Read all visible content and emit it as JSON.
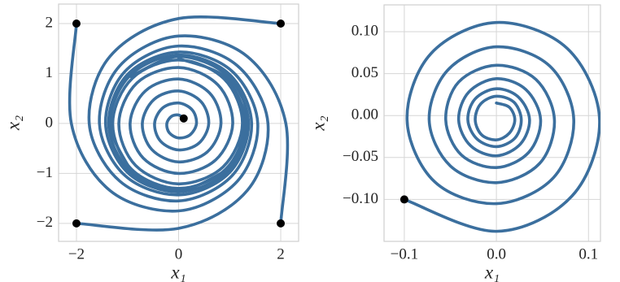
{
  "chart_data": [
    {
      "type": "line",
      "xlabel": "x₁",
      "ylabel": "x₂",
      "grid": true,
      "xlim": [
        -2.35,
        2.35
      ],
      "ylim": [
        -2.36,
        2.39
      ],
      "xticks": [
        {
          "value": -2,
          "label": "−2"
        },
        0,
        2
      ],
      "yticks": [
        {
          "value": -2,
          "label": "−2"
        },
        {
          "value": -1,
          "label": "−1"
        },
        0,
        1,
        2
      ],
      "start_marker_color": "#000000",
      "series": [
        {
          "color": "#3b6f9e",
          "x": [
            0.1,
            0,
            -0.141,
            -0.23,
            -0.184,
            0,
            0.226,
            0.35,
            0.269,
            0,
            -0.311,
            -0.47,
            -0.354,
            0,
            0.396,
            0.59,
            0.438,
            0,
            -0.481,
            -0.71,
            -0.523,
            0,
            0.566,
            0.83,
            0.608,
            0,
            -0.651,
            -0.95,
            -0.693,
            0,
            0.728,
            1.06,
            0.771,
            0,
            -0.813,
            -1.17,
            -0.841,
            0,
            0.87,
            1.25,
            0.891,
            0,
            -0.905,
            -1.29,
            -0.919,
            0,
            0.919,
            1.3,
            0.919,
            0
          ],
          "values": [
            0.1,
            0.17,
            0.141,
            0,
            -0.184,
            -0.29,
            -0.226,
            0,
            0.269,
            0.41,
            0.311,
            0,
            -0.354,
            -0.53,
            -0.396,
            0,
            0.438,
            0.65,
            0.481,
            0,
            -0.523,
            -0.77,
            -0.566,
            0,
            0.608,
            0.89,
            0.651,
            0,
            -0.693,
            -1.0,
            -0.728,
            0,
            0.771,
            1.12,
            0.813,
            0,
            -0.841,
            -1.21,
            -0.87,
            0,
            0.891,
            1.27,
            0.905,
            0,
            -0.919,
            -1.3,
            -0.919,
            0,
            0.919,
            1.3
          ]
        },
        {
          "color": "#3b6f9e",
          "x": [
            2,
            0,
            -1.343,
            -1.75,
            -1.153,
            0,
            1.046,
            1.43,
            0.99,
            0,
            -0.955,
            -1.34,
            -0.94
          ],
          "values": [
            2,
            2.1,
            1.343,
            0,
            -1.153,
            -1.55,
            -1.046,
            0,
            0.99,
            1.37,
            0.955,
            0,
            -0.94
          ]
        },
        {
          "color": "#3b6f9e",
          "x": [
            -2,
            -2.1,
            -1.343,
            0,
            1.153,
            1.55,
            1.046,
            0,
            -0.99,
            -1.37,
            -0.955,
            0,
            0.94
          ],
          "values": [
            2,
            0,
            -1.343,
            -1.75,
            -1.153,
            0,
            1.046,
            1.43,
            0.99,
            0,
            -0.955,
            -1.34,
            -0.94
          ]
        },
        {
          "color": "#3b6f9e",
          "x": [
            -2,
            0,
            1.343,
            1.75,
            1.153,
            0,
            -1.046,
            -1.43,
            -0.99,
            0,
            0.955,
            1.34,
            0.94
          ],
          "values": [
            -2,
            -2.1,
            -1.343,
            0,
            1.153,
            1.55,
            1.046,
            0,
            -0.99,
            -1.37,
            -0.955,
            0,
            0.94
          ]
        },
        {
          "color": "#3b6f9e",
          "x": [
            2,
            2.1,
            1.343,
            0,
            -1.153,
            -1.55,
            -1.046,
            0,
            0.99,
            1.37,
            0.955,
            0,
            -0.94
          ],
          "values": [
            -2,
            0,
            1.343,
            1.75,
            1.153,
            0,
            -1.046,
            -1.43,
            -0.99,
            0,
            0.955,
            1.34,
            0.94
          ]
        }
      ]
    },
    {
      "type": "line",
      "xlabel": "x₁",
      "ylabel": "x₂",
      "grid": true,
      "xlim": [
        -0.122,
        0.113
      ],
      "ylim": [
        -0.15,
        0.132
      ],
      "xticks": [
        {
          "value": -0.1,
          "label": "−0.1"
        },
        {
          "value": 0,
          "label": "0.0"
        },
        0.1
      ],
      "yticks": [
        {
          "value": -0.1,
          "label": "−0.10"
        },
        {
          "value": -0.05,
          "label": "−0.05"
        },
        {
          "value": 0,
          "label": "0.00"
        },
        0.05,
        {
          "value": 0.1,
          "label": "0.10"
        }
      ],
      "start_marker_color": "#000000",
      "series": [
        {
          "color": "#3b6f9e",
          "x": [
            -0.1,
            0,
            0.082,
            0.112,
            0.077,
            0,
            -0.071,
            -0.097,
            -0.067,
            0,
            0.062,
            0.084,
            0.058,
            0,
            -0.053,
            -0.073,
            -0.05,
            0,
            0.047,
            0.063,
            0.043,
            0,
            -0.041,
            -0.055,
            -0.038,
            0,
            0.035,
            0.048,
            0.032,
            0,
            -0.03,
            -0.041,
            -0.028,
            0,
            0.026,
            0.036,
            0.024,
            0,
            -0.023,
            -0.031,
            -0.021,
            0,
            0.02,
            0.027,
            0.019,
            0,
            -0.017,
            -0.023,
            -0.016,
            0,
            0.014,
            0.02,
            0.014,
            0
          ],
          "values": [
            -0.1,
            -0.138,
            -0.096,
            -0.005,
            0.08,
            0.111,
            0.074,
            -0.005,
            -0.079,
            -0.105,
            -0.074,
            -0.005,
            0.059,
            0.082,
            0.054,
            -0.005,
            -0.06,
            -0.08,
            -0.057,
            -0.005,
            0.043,
            0.06,
            0.04,
            -0.005,
            -0.047,
            -0.062,
            -0.044,
            -0.005,
            0.031,
            0.044,
            0.028,
            -0.005,
            -0.036,
            -0.048,
            -0.034,
            -0.005,
            0.022,
            0.032,
            0.02,
            -0.005,
            -0.028,
            -0.037,
            -0.027,
            -0.005,
            0.016,
            0.023,
            0.014,
            -0.005,
            -0.023,
            -0.029,
            -0.021,
            -0.005,
            0.01,
            0.015
          ]
        }
      ]
    }
  ]
}
